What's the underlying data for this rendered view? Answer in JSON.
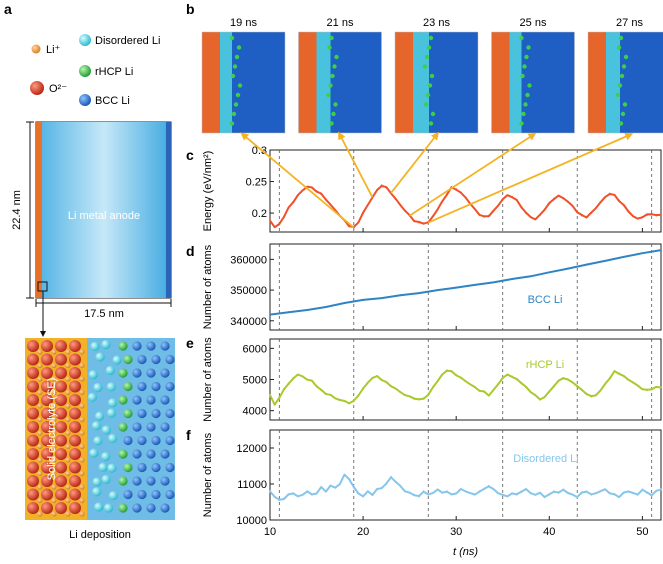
{
  "panel_letters": [
    "a",
    "b",
    "c",
    "d",
    "e",
    "f"
  ],
  "legend": [
    {
      "label": "Li⁺",
      "color": "#e8902a"
    },
    {
      "label": "O²⁻",
      "color": "#d63418"
    },
    {
      "label": "Disordered Li",
      "color": "#4dd4e6"
    },
    {
      "label": "rHCP Li",
      "color": "#33c24a"
    },
    {
      "label": "BCC Li",
      "color": "#1f6fd6"
    }
  ],
  "schematic": {
    "height_label": "22.4 nm",
    "width_label": "17.5 nm",
    "anode_label": "Li metal anode",
    "se_label": "Solid electrolyte (SE)",
    "deposition_label": "Li deposition"
  },
  "snapshots": {
    "times": [
      "19 ns",
      "21 ns",
      "23 ns",
      "25 ns",
      "27 ns"
    ],
    "arrow_targets_ns": [
      19.0,
      21.0,
      23.0,
      25.0,
      27.0
    ]
  },
  "colors": {
    "energy": "#f0502a",
    "bcc": "#2f84c4",
    "rhcp": "#a9c92e",
    "disordered": "#86c6ec",
    "arrow": "#f5b324"
  },
  "chart_data": [
    {
      "id": "c",
      "type": "line",
      "ylabel": "Energy (eV/nm²)",
      "xlim": [
        10,
        52
      ],
      "ylim": [
        0.17,
        0.3
      ],
      "yticks": [
        0.2,
        0.25,
        0.3
      ],
      "ytick_labels": [
        "0.2",
        "0.25",
        "0.3"
      ],
      "series": [
        {
          "x": [
            10,
            10.5,
            11,
            11.5,
            12,
            12.5,
            13,
            13.5,
            14,
            14.5,
            15,
            15.5,
            16,
            16.5,
            17,
            17.5,
            18,
            18.5,
            19,
            19.5,
            20,
            20.5,
            21,
            21.5,
            22,
            22.5,
            23,
            23.5,
            24,
            24.5,
            25,
            25.5,
            26,
            26.5,
            27,
            27.5,
            28,
            28.5,
            29,
            29.5,
            30,
            30.5,
            31,
            31.5,
            32,
            32.5,
            33,
            33.5,
            34,
            34.5,
            35,
            35.5,
            36,
            36.5,
            37,
            37.5,
            38,
            38.5,
            39,
            39.5,
            40,
            40.5,
            41,
            41.5,
            42,
            42.5,
            43,
            43.5,
            44,
            44.5,
            45,
            45.5,
            46,
            46.5,
            47,
            47.5,
            48,
            48.5,
            49,
            49.5,
            50,
            50.5,
            51,
            51.5,
            52
          ],
          "y": [
            0.188,
            0.178,
            0.182,
            0.195,
            0.208,
            0.218,
            0.228,
            0.236,
            0.242,
            0.24,
            0.235,
            0.23,
            0.222,
            0.213,
            0.205,
            0.196,
            0.188,
            0.18,
            0.177,
            0.186,
            0.2,
            0.213,
            0.225,
            0.236,
            0.244,
            0.24,
            0.232,
            0.222,
            0.213,
            0.204,
            0.196,
            0.188,
            0.185,
            0.184,
            0.185,
            0.195,
            0.206,
            0.218,
            0.23,
            0.24,
            0.238,
            0.232,
            0.225,
            0.215,
            0.206,
            0.198,
            0.194,
            0.196,
            0.203,
            0.212,
            0.222,
            0.228,
            0.226,
            0.22,
            0.21,
            0.2,
            0.194,
            0.19,
            0.197,
            0.206,
            0.215,
            0.223,
            0.227,
            0.224,
            0.218,
            0.211,
            0.202,
            0.196,
            0.194,
            0.2,
            0.208,
            0.217,
            0.225,
            0.231,
            0.228,
            0.22,
            0.212,
            0.203,
            0.195,
            0.191,
            0.194,
            0.197,
            0.199,
            0.196,
            0.198
          ]
        }
      ]
    },
    {
      "id": "d",
      "type": "line",
      "ylabel": "Number of atoms",
      "series_label": "BCC Li",
      "xlim": [
        10,
        52
      ],
      "ylim": [
        337000,
        365000
      ],
      "yticks": [
        340000,
        350000,
        360000
      ],
      "ytick_labels": [
        "340000",
        "350000",
        "360000"
      ],
      "series": [
        {
          "name": "BCC Li",
          "x": [
            10,
            12,
            14,
            16,
            18,
            20,
            22,
            24,
            26,
            28,
            30,
            32,
            34,
            36,
            38,
            40,
            42,
            44,
            46,
            48,
            50,
            52
          ],
          "y": [
            342000,
            342800,
            343500,
            344500,
            345800,
            346800,
            347400,
            348300,
            349000,
            350000,
            350800,
            351700,
            352500,
            353600,
            354500,
            355800,
            357000,
            358300,
            359500,
            360800,
            362000,
            363000
          ]
        }
      ]
    },
    {
      "id": "e",
      "type": "line",
      "ylabel": "Number of atoms",
      "series_label": "rHCP Li",
      "xlim": [
        10,
        52
      ],
      "ylim": [
        3700,
        6300
      ],
      "yticks": [
        4000,
        5000,
        6000
      ],
      "ytick_labels": [
        "4000",
        "5000",
        "6000"
      ],
      "series": [
        {
          "name": "rHCP Li",
          "x": [
            10,
            10.5,
            11,
            11.5,
            12,
            12.5,
            13,
            13.5,
            14,
            14.5,
            15,
            15.5,
            16,
            16.5,
            17,
            17.5,
            18,
            18.5,
            19,
            19.5,
            20,
            20.5,
            21,
            21.5,
            22,
            22.5,
            23,
            23.5,
            24,
            24.5,
            25,
            25.5,
            26,
            26.5,
            27,
            27.5,
            28,
            28.5,
            29,
            29.5,
            30,
            30.5,
            31,
            31.5,
            32,
            32.5,
            33,
            33.5,
            34,
            34.5,
            35,
            35.5,
            36,
            36.5,
            37,
            37.5,
            38,
            38.5,
            39,
            39.5,
            40,
            40.5,
            41,
            41.5,
            42,
            42.5,
            43,
            43.5,
            44,
            44.5,
            45,
            45.5,
            46,
            46.5,
            47,
            47.5,
            48,
            48.5,
            49,
            49.5,
            50,
            50.5,
            51,
            51.5,
            52
          ],
          "y": [
            4500,
            4200,
            4400,
            4700,
            4850,
            5050,
            5150,
            5100,
            5000,
            4950,
            4800,
            4650,
            4550,
            4500,
            4400,
            4350,
            4300,
            4250,
            4300,
            4500,
            4700,
            4900,
            5050,
            5100,
            5000,
            4900,
            4800,
            4700,
            4600,
            4500,
            4450,
            4400,
            4350,
            4400,
            4500,
            4750,
            4950,
            5150,
            5300,
            5250,
            5150,
            5050,
            4950,
            4850,
            4750,
            4650,
            4600,
            4500,
            4650,
            4850,
            5050,
            5150,
            5100,
            5000,
            4900,
            4750,
            4600,
            4500,
            4350,
            4450,
            4600,
            4800,
            4950,
            5050,
            5000,
            4900,
            4800,
            4650,
            4550,
            4450,
            4500,
            4650,
            4850,
            5050,
            5250,
            5200,
            5100,
            5000,
            4900,
            4800,
            4700,
            4650,
            4700,
            4750,
            4750
          ]
        }
      ]
    },
    {
      "id": "f",
      "type": "line",
      "ylabel": "Number of atoms",
      "series_label": "Disordered Li",
      "xlabel": "t (ns)",
      "xlim": [
        10,
        52
      ],
      "ylim": [
        10000,
        12500
      ],
      "yticks": [
        10000,
        11000,
        12000
      ],
      "ytick_labels": [
        "10000",
        "11000",
        "12000"
      ],
      "xticks": [
        10,
        20,
        30,
        40,
        50
      ],
      "xtick_labels": [
        "10",
        "20",
        "30",
        "40",
        "50"
      ],
      "series": [
        {
          "name": "Disordered Li",
          "x": [
            10,
            10.5,
            11,
            11.5,
            12,
            12.5,
            13,
            13.5,
            14,
            14.5,
            15,
            15.5,
            16,
            16.5,
            17,
            17.5,
            18,
            18.5,
            19,
            19.5,
            20,
            20.5,
            21,
            21.5,
            22,
            22.5,
            23,
            23.5,
            24,
            24.5,
            25,
            25.5,
            26,
            26.5,
            27,
            27.5,
            28,
            28.5,
            29,
            29.5,
            30,
            30.5,
            31,
            31.5,
            32,
            32.5,
            33,
            33.5,
            34,
            34.5,
            35,
            35.5,
            36,
            36.5,
            37,
            37.5,
            38,
            38.5,
            39,
            39.5,
            40,
            40.5,
            41,
            41.5,
            42,
            42.5,
            43,
            43.5,
            44,
            44.5,
            45,
            45.5,
            46,
            46.5,
            47,
            47.5,
            48,
            48.5,
            49,
            49.5,
            50,
            50.5,
            51,
            51.5,
            52
          ],
          "y": [
            10800,
            10650,
            10550,
            10600,
            10700,
            10750,
            10650,
            10700,
            10800,
            10700,
            10750,
            10900,
            10800,
            10950,
            10900,
            11000,
            11250,
            11150,
            10900,
            10750,
            10650,
            10800,
            10700,
            10850,
            10900,
            11000,
            11200,
            11050,
            10950,
            10800,
            10750,
            10700,
            10650,
            10800,
            10700,
            10750,
            10850,
            10750,
            10800,
            10700,
            10750,
            10850,
            10800,
            10750,
            10700,
            10800,
            10850,
            10950,
            10850,
            10750,
            10700,
            10650,
            10750,
            10700,
            10800,
            10850,
            10750,
            10700,
            10750,
            10650,
            10700,
            10800,
            10750,
            10850,
            10750,
            10700,
            10650,
            10750,
            10800,
            10700,
            10750,
            10800,
            10850,
            10750,
            10700,
            10650,
            10750,
            10800,
            10750,
            10700,
            10850,
            10750,
            10700,
            10800,
            10850
          ]
        }
      ]
    }
  ]
}
